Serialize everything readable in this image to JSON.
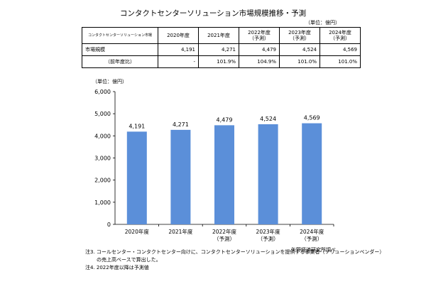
{
  "title": "コンタクトセンターソリューション市場規模推移・予測",
  "table": {
    "unit": "（単位：億円）",
    "header_first": "コンタクトセンターソリューション市場",
    "headers": [
      {
        "line1": "2020年度",
        "line2": ""
      },
      {
        "line1": "2021年度",
        "line2": ""
      },
      {
        "line1": "2022年度",
        "line2": "（予測）"
      },
      {
        "line1": "2023年度",
        "line2": "（予測）"
      },
      {
        "line1": "2024年度",
        "line2": "（予測）"
      }
    ],
    "rows": [
      {
        "label": "市場規模",
        "values": [
          "4,191",
          "4,271",
          "4,479",
          "4,524",
          "4,569"
        ]
      },
      {
        "label": "（前年度比）",
        "values": [
          "-",
          "101.9%",
          "104.9%",
          "101.0%",
          "101.0%"
        ]
      }
    ]
  },
  "chart_data": {
    "type": "bar",
    "categories": [
      "2020年度",
      "2021年度",
      "2022年度",
      "2023年度",
      "2024年度"
    ],
    "category_sublabels": [
      "",
      "",
      "（予測）",
      "（予測）",
      "（予測）"
    ],
    "values": [
      4191,
      4271,
      4479,
      4524,
      4569
    ],
    "value_labels": [
      "4,191",
      "4,271",
      "4,479",
      "4,524",
      "4,569"
    ],
    "ylabel": "（単位：億円）",
    "ylim": [
      0,
      6000
    ],
    "yticks": [
      0,
      1000,
      2000,
      3000,
      4000,
      5000,
      6000
    ],
    "ytick_labels": [
      "0",
      "1,000",
      "2,000",
      "3,000",
      "4,000",
      "5,000",
      "6,000"
    ],
    "bar_color": "#5b8fd9",
    "grid": false
  },
  "source": "矢野経済研究所調べ",
  "notes": [
    "注3. コールセンター・コンタクトセンター向けに、コンタクトセンターソリューションを提供する事業者（ソリューションベンダー）",
    "の売上高ベースで算出した。",
    "注4. 2022年度以降は予測値"
  ]
}
